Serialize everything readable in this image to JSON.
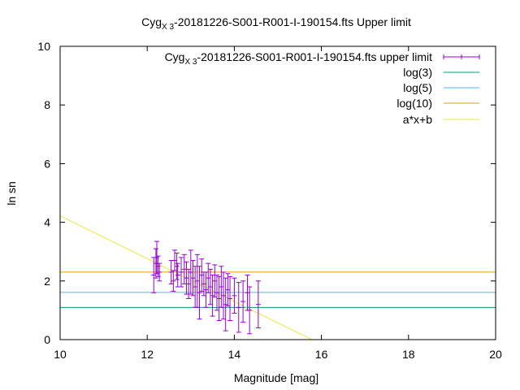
{
  "chart_data": {
    "type": "scatter",
    "title": {
      "main": "Cyg",
      "sub": "X 3",
      "rest": "-20181226-S001-R001-I-190154.fts Upper limit"
    },
    "xlabel": "Magnitude [mag]",
    "ylabel": "ln sn",
    "xlim": [
      10,
      20
    ],
    "ylim": [
      0,
      10
    ],
    "x_ticks": [
      "10",
      "12",
      "14",
      "16",
      "18",
      "20"
    ],
    "y_ticks": [
      "0",
      "2",
      "4",
      "6",
      "8",
      "10"
    ],
    "grid": false,
    "legend_position": "top-right",
    "legend": [
      {
        "main": "Cyg",
        "sub": "X 3",
        "rest": "-20181226-S001-R001-I-190154.fts upper limit",
        "color": "#9400d3",
        "kind": "errorbar"
      },
      {
        "label": "log(3)",
        "color": "#009e73",
        "kind": "line"
      },
      {
        "label": "log(5)",
        "color": "#56b4e9",
        "kind": "line"
      },
      {
        "label": "log(10)",
        "color": "#e69f00",
        "kind": "line"
      },
      {
        "label": "a*x+b",
        "color": "#f0e442",
        "kind": "line"
      }
    ],
    "hlines": [
      {
        "name": "log(3)",
        "y": 1.0986,
        "color": "#009e73"
      },
      {
        "name": "log(5)",
        "y": 1.6094,
        "color": "#56b4e9"
      },
      {
        "name": "log(10)",
        "y": 2.3026,
        "color": "#e69f00"
      }
    ],
    "fit_line": {
      "name": "a*x+b",
      "slope": -0.73,
      "intercept": 11.52,
      "color": "#f0e442"
    },
    "series": [
      {
        "color": "#9400d3",
        "points": [
          {
            "x": 12.15,
            "y": 2.2,
            "err": 0.6
          },
          {
            "x": 12.2,
            "y": 2.6,
            "err": 0.5
          },
          {
            "x": 12.22,
            "y": 2.8,
            "err": 0.55
          },
          {
            "x": 12.25,
            "y": 2.5,
            "err": 0.35
          },
          {
            "x": 12.28,
            "y": 2.3,
            "err": 0.3
          },
          {
            "x": 12.55,
            "y": 2.3,
            "err": 0.4
          },
          {
            "x": 12.6,
            "y": 2.0,
            "err": 0.35
          },
          {
            "x": 12.63,
            "y": 2.7,
            "err": 0.35
          },
          {
            "x": 12.68,
            "y": 2.5,
            "err": 0.45
          },
          {
            "x": 12.7,
            "y": 2.2,
            "err": 0.4
          },
          {
            "x": 12.78,
            "y": 2.3,
            "err": 0.5
          },
          {
            "x": 12.85,
            "y": 2.4,
            "err": 0.5
          },
          {
            "x": 12.9,
            "y": 2.1,
            "err": 0.55
          },
          {
            "x": 12.95,
            "y": 1.9,
            "err": 0.5
          },
          {
            "x": 13.0,
            "y": 2.3,
            "err": 0.75
          },
          {
            "x": 13.05,
            "y": 2.1,
            "err": 0.6
          },
          {
            "x": 13.1,
            "y": 1.8,
            "err": 0.7
          },
          {
            "x": 13.15,
            "y": 2.0,
            "err": 0.9
          },
          {
            "x": 13.2,
            "y": 1.6,
            "err": 0.9
          },
          {
            "x": 13.25,
            "y": 2.2,
            "err": 0.55
          },
          {
            "x": 13.3,
            "y": 1.9,
            "err": 0.4
          },
          {
            "x": 13.35,
            "y": 1.7,
            "err": 0.6
          },
          {
            "x": 13.4,
            "y": 2.1,
            "err": 0.5
          },
          {
            "x": 13.45,
            "y": 1.8,
            "err": 0.6
          },
          {
            "x": 13.5,
            "y": 1.5,
            "err": 0.7
          },
          {
            "x": 13.55,
            "y": 2.0,
            "err": 0.55
          },
          {
            "x": 13.6,
            "y": 1.6,
            "err": 0.6
          },
          {
            "x": 13.65,
            "y": 1.4,
            "err": 0.75
          },
          {
            "x": 13.7,
            "y": 1.8,
            "err": 0.7
          },
          {
            "x": 13.75,
            "y": 1.5,
            "err": 0.8
          },
          {
            "x": 13.8,
            "y": 1.2,
            "err": 0.9
          },
          {
            "x": 13.85,
            "y": 1.7,
            "err": 0.55
          },
          {
            "x": 13.9,
            "y": 1.4,
            "err": 0.75
          },
          {
            "x": 14.0,
            "y": 1.5,
            "err": 0.6
          },
          {
            "x": 14.1,
            "y": 1.1,
            "err": 0.85
          },
          {
            "x": 14.2,
            "y": 1.3,
            "err": 0.7
          },
          {
            "x": 14.3,
            "y": 1.6,
            "err": 0.6
          },
          {
            "x": 14.35,
            "y": 1.0,
            "err": 0.8
          },
          {
            "x": 14.55,
            "y": 1.2,
            "err": 0.8
          }
        ]
      }
    ]
  }
}
